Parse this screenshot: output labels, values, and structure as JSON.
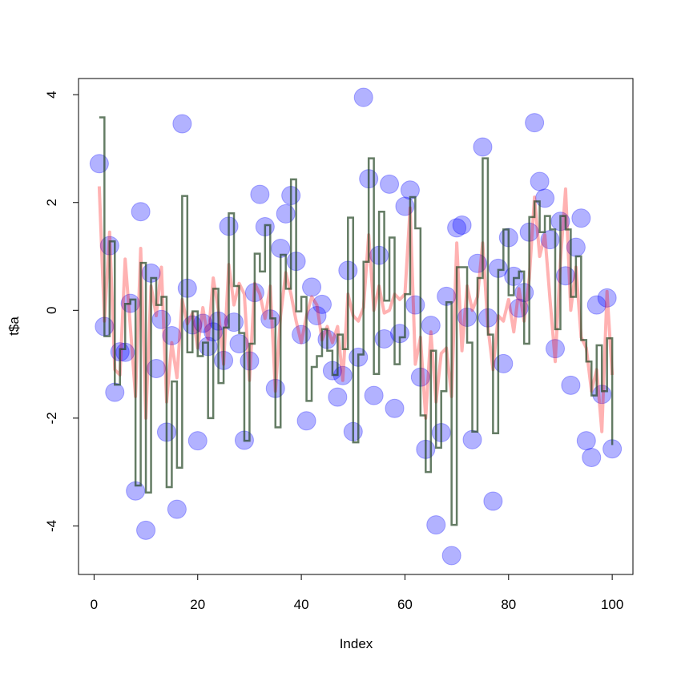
{
  "chart_data": {
    "type": "scatter",
    "title": "",
    "xlabel": "Index",
    "ylabel": "t$a",
    "xlim": [
      -3,
      104
    ],
    "ylim": [
      -4.9,
      4.3
    ],
    "x_ticks": [
      0,
      20,
      40,
      60,
      80,
      100
    ],
    "y_ticks": [
      -4,
      -2,
      0,
      2,
      4
    ],
    "x_tick_labels": [
      "0",
      "20",
      "40",
      "60",
      "80",
      "100"
    ],
    "y_tick_labels": [
      "-4",
      "-2",
      "0",
      "2",
      "4"
    ],
    "grid": false,
    "legend": "none",
    "x": [
      1,
      2,
      3,
      4,
      5,
      6,
      7,
      8,
      9,
      10,
      11,
      12,
      13,
      14,
      15,
      16,
      17,
      18,
      19,
      20,
      21,
      22,
      23,
      24,
      25,
      26,
      27,
      28,
      29,
      30,
      31,
      32,
      33,
      34,
      35,
      36,
      37,
      38,
      39,
      40,
      41,
      42,
      43,
      44,
      45,
      46,
      47,
      48,
      49,
      50,
      51,
      52,
      53,
      54,
      55,
      56,
      57,
      58,
      59,
      60,
      61,
      62,
      63,
      64,
      65,
      66,
      67,
      68,
      69,
      70,
      71,
      72,
      73,
      74,
      75,
      76,
      77,
      78,
      79,
      80,
      81,
      82,
      83,
      84,
      85,
      86,
      87,
      88,
      89,
      90,
      91,
      92,
      93,
      94,
      95,
      96,
      97,
      98,
      99,
      100
    ],
    "series": [
      {
        "style": "points",
        "color": "#0000ff",
        "alpha": 0.3,
        "values": [
          2.72,
          -0.3,
          1.2,
          -1.52,
          -0.77,
          -0.78,
          0.13,
          -3.35,
          1.83,
          -4.08,
          0.69,
          -1.08,
          -0.17,
          -2.26,
          -0.47,
          -3.69,
          3.46,
          0.41,
          -0.27,
          -2.42,
          -0.24,
          -0.67,
          -0.4,
          -0.2,
          -0.93,
          1.56,
          -0.22,
          -0.62,
          -2.41,
          -0.94,
          0.33,
          2.15,
          1.55,
          -0.16,
          -1.45,
          1.15,
          1.79,
          2.13,
          0.91,
          -0.45,
          -2.05,
          0.43,
          -0.1,
          0.11,
          -0.54,
          -1.12,
          -1.61,
          -1.21,
          0.74,
          -2.25,
          -0.87,
          3.95,
          2.44,
          -1.58,
          1.02,
          -0.53,
          2.34,
          -1.82,
          -0.43,
          1.93,
          2.23,
          0.1,
          -1.24,
          -2.58,
          -0.28,
          -3.98,
          -2.27,
          0.26,
          -4.55,
          1.53,
          1.58,
          -0.13,
          -2.4,
          0.87,
          3.03,
          -0.14,
          -3.54,
          0.78,
          -0.99,
          1.35,
          0.63,
          0.04,
          0.33,
          1.45,
          3.48,
          2.39,
          2.08,
          1.31,
          -0.71,
          1.65,
          0.64,
          -1.39,
          1.17,
          1.71,
          -2.42,
          -2.73,
          0.1,
          -1.56,
          0.23,
          -2.57
        ]
      },
      {
        "style": "line",
        "color": "#ff0000",
        "alpha": 0.3,
        "values": [
          2.3,
          -0.2,
          1.45,
          -1.1,
          -1.2,
          0.95,
          -0.3,
          -1.6,
          1.15,
          -2.0,
          0.45,
          -0.1,
          0.8,
          -1.7,
          -0.6,
          -1.25,
          0.2,
          -0.25,
          -0.05,
          -0.7,
          0.05,
          -0.55,
          0.6,
          0.0,
          -1.0,
          0.85,
          0.1,
          0.5,
          0.3,
          -1.3,
          0.5,
          0.3,
          -0.15,
          0.45,
          -1.5,
          -0.1,
          0.7,
          0.3,
          -0.2,
          -0.6,
          -0.1,
          0.25,
          0.1,
          -0.55,
          -0.3,
          -0.6,
          -0.3,
          -1.3,
          0.3,
          -0.1,
          -0.2,
          0.05,
          1.4,
          0.0,
          0.45,
          -0.05,
          0.0,
          0.3,
          0.2,
          0.3,
          1.9,
          -1.0,
          -0.5,
          -2.0,
          -0.4,
          -1.7,
          -0.8,
          -0.7,
          -1.6,
          1.25,
          -0.75,
          0.45,
          0.0,
          0.25,
          1.25,
          -0.3,
          -1.1,
          -0.1,
          -0.2,
          0.2,
          -0.4,
          0.4,
          -0.2,
          0.6,
          2.1,
          1.0,
          1.4,
          0.2,
          -0.95,
          0.9,
          2.25,
          0.0,
          0.8,
          -0.5,
          -0.7,
          -1.5,
          -1.1,
          -2.25,
          0.35,
          -1.2
        ]
      },
      {
        "style": "step",
        "color": "#224422",
        "alpha": 0.7,
        "values": [
          3.58,
          -0.48,
          1.28,
          -1.38,
          -0.72,
          0.12,
          0.2,
          -3.25,
          0.88,
          -3.38,
          0.6,
          0.1,
          0.25,
          -3.28,
          -1.32,
          -2.92,
          2.12,
          -0.78,
          -0.02,
          -0.85,
          -0.6,
          -2.0,
          0.4,
          -1.35,
          -0.32,
          1.8,
          0.45,
          -0.42,
          -2.42,
          -0.62,
          1.05,
          0.72,
          1.58,
          -0.15,
          -2.17,
          1.03,
          0.4,
          2.43,
          -0.02,
          0.25,
          -1.68,
          -1.05,
          -0.85,
          -0.35,
          -0.75,
          -1.2,
          -0.45,
          -0.72,
          1.72,
          -2.45,
          -0.82,
          0.9,
          2.82,
          -1.18,
          1.83,
          0.18,
          1.35,
          -1.0,
          -0.5,
          0.3,
          2.1,
          1.52,
          -1.95,
          -3.0,
          -0.75,
          -2.55,
          -1.5,
          0.15,
          -3.98,
          0.8,
          0.8,
          -0.6,
          -2.25,
          0.6,
          2.82,
          -0.45,
          -2.28,
          0.75,
          1.5,
          0.28,
          0.6,
          0.72,
          -0.62,
          1.73,
          2.02,
          1.45,
          1.75,
          1.5,
          -0.35,
          1.75,
          1.5,
          0.25,
          1.0,
          -0.55,
          -0.95,
          -1.58,
          -0.65,
          -1.5,
          -0.52,
          -2.5
        ]
      }
    ]
  }
}
